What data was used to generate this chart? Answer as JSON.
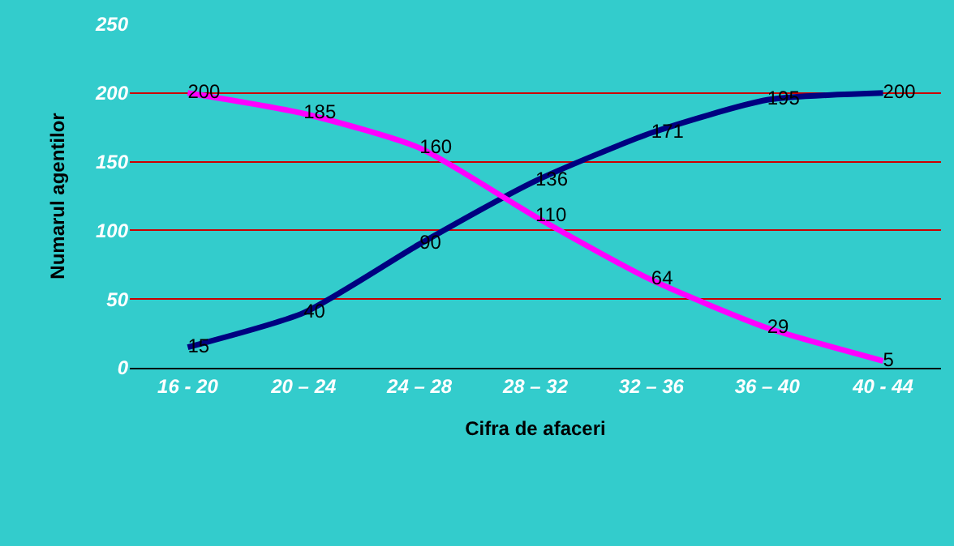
{
  "chart_data": {
    "type": "line",
    "xlabel": "Cifra de afaceri",
    "ylabel": "Numarul agentilor",
    "categories": [
      "16 - 20",
      "20 – 24",
      "24 – 28",
      "28 – 32",
      "32 – 36",
      "36 – 40",
      "40 - 44"
    ],
    "series": [
      {
        "color": "#000080",
        "values": [
          15,
          40,
          90,
          136,
          171,
          195,
          200
        ]
      },
      {
        "color": "#ff00ff",
        "values": [
          200,
          185,
          160,
          110,
          64,
          29,
          5
        ]
      }
    ],
    "ylim": [
      0,
      250
    ],
    "yticks": [
      0,
      50,
      100,
      150,
      200,
      250
    ],
    "grid": "y",
    "legend": false,
    "marker": "none",
    "line_style": "solid",
    "data_labels": true
  }
}
